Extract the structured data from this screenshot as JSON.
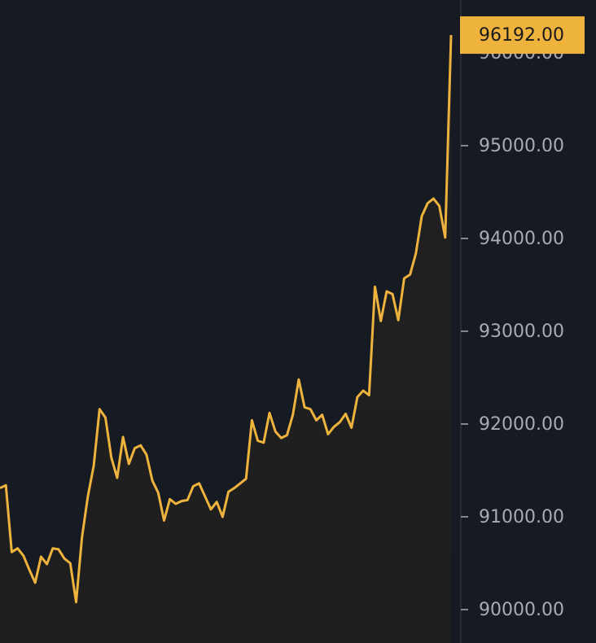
{
  "chart_data": {
    "type": "line",
    "series": [
      {
        "name": "price",
        "color": "#eeb33d",
        "values": [
          91310,
          91340,
          90620,
          90660,
          90580,
          90430,
          90290,
          90570,
          90490,
          90660,
          90650,
          90550,
          90500,
          90080,
          90780,
          91220,
          91550,
          92160,
          92070,
          91640,
          91420,
          91860,
          91570,
          91740,
          91770,
          91670,
          91390,
          91260,
          90960,
          91190,
          91140,
          91170,
          91180,
          91330,
          91360,
          91220,
          91080,
          91160,
          91000,
          91270,
          91310,
          91360,
          91410,
          92040,
          91820,
          91800,
          92120,
          91920,
          91850,
          91880,
          92100,
          92480,
          92180,
          92160,
          92040,
          92100,
          91890,
          91970,
          92020,
          92110,
          91960,
          92290,
          92360,
          92310,
          93480,
          93110,
          93430,
          93400,
          93120,
          93570,
          93610,
          93840,
          94240,
          94380,
          94430,
          94350,
          94010,
          96192
        ]
      }
    ],
    "ylim": [
      89640,
      96570
    ],
    "yticks": [
      {
        "value": 90000,
        "label": "90000.00"
      },
      {
        "value": 91000,
        "label": "91000.00"
      },
      {
        "value": 92000,
        "label": "92000.00"
      },
      {
        "value": 93000,
        "label": "93000.00"
      },
      {
        "value": 94000,
        "label": "94000.00"
      },
      {
        "value": 95000,
        "label": "95000.00"
      },
      {
        "value": 96000,
        "label": "96000.00"
      }
    ],
    "last_price": {
      "value": 96192,
      "label": "96192.00"
    }
  }
}
